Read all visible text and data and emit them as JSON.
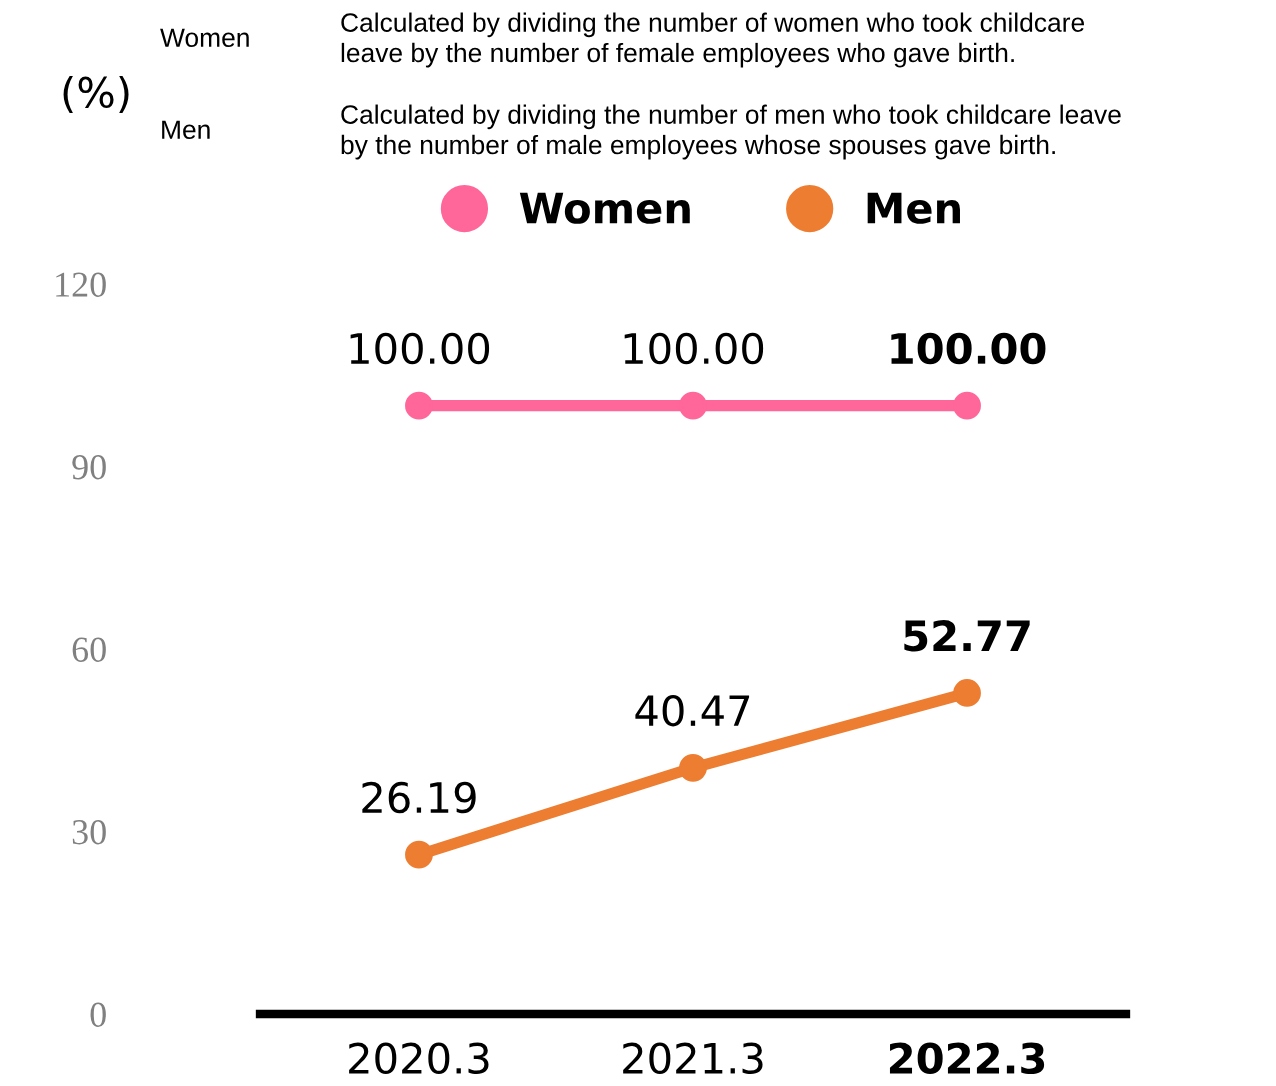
{
  "chart_data": {
    "type": "line",
    "ylabel": "(%)",
    "categories": [
      "2020.3",
      "2021.3",
      "2022.3"
    ],
    "series": [
      {
        "name": "Women",
        "color": "#ff6699",
        "values": [
          100.0,
          100.0,
          100.0
        ],
        "value_labels": [
          "100.00",
          "100.00",
          "100.00"
        ]
      },
      {
        "name": "Men",
        "color": "#ed7d31",
        "values": [
          26.19,
          40.47,
          52.77
        ],
        "value_labels": [
          "26.19",
          "40.47",
          "52.77"
        ]
      }
    ],
    "ylim": [
      0,
      120
    ],
    "yticks": [
      0,
      30,
      60,
      90,
      120
    ],
    "grid": false,
    "legend": "top",
    "marker": "circle",
    "line_style": "solid",
    "annotations": [
      "Women",
      "Calculated by dividing the number of women who took childcare\nleave by the number of female employees who gave birth.",
      "Men",
      "Calculated by dividing the number of men who took childcare leave\nby the number of male employees whose spouses gave birth."
    ]
  }
}
